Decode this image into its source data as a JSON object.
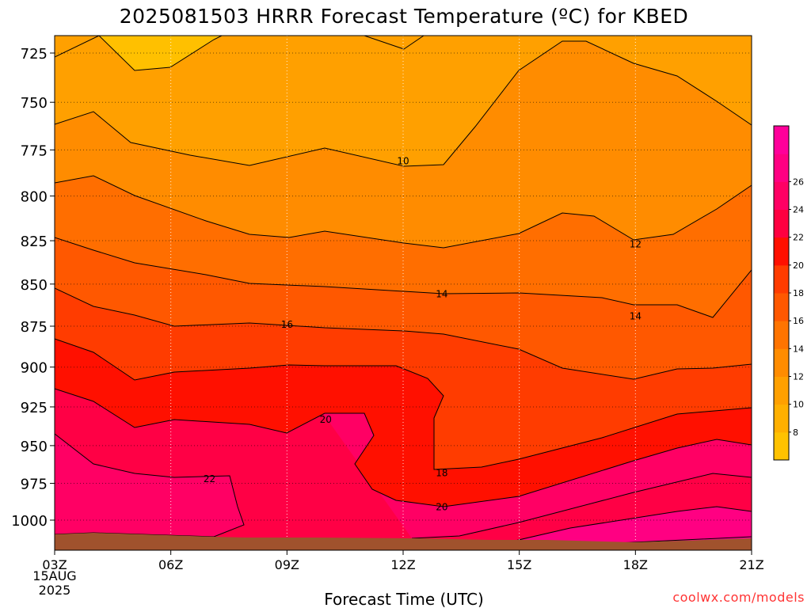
{
  "chart_data": {
    "type": "contour",
    "title": "2025081503 HRRR Forecast Temperature (ºC) for KBED",
    "xlabel": "Forecast Time (UTC)",
    "ylabel": "",
    "credit": "coolwx.com/models",
    "x_ticks": [
      "03Z",
      "06Z",
      "09Z",
      "12Z",
      "15Z",
      "18Z",
      "21Z"
    ],
    "x_date_line1": "15AUG",
    "x_date_line2": "2025",
    "x_hours": [
      3,
      21
    ],
    "y_ticks": [
      725,
      750,
      775,
      800,
      825,
      850,
      875,
      900,
      925,
      950,
      975,
      1000
    ],
    "y_range_hPa": [
      710,
      1020
    ],
    "y_scale": "log-pressure (inverted)",
    "grid": "dotted",
    "colorbar_levels": [
      8,
      10,
      12,
      14,
      16,
      18,
      20,
      22,
      24,
      26
    ],
    "colorbar_colors": [
      "#ffc200",
      "#ffb000",
      "#ffa000",
      "#ff8c00",
      "#ff7400",
      "#ff5800",
      "#ff3c00",
      "#ff1000",
      "#ff0040",
      "#ff0064",
      "#ff0082",
      "#ff009a"
    ],
    "contour_labels": [
      {
        "text": "10",
        "hour": 12.0,
        "hPa": 781
      },
      {
        "text": "12",
        "hour": 18.0,
        "hPa": 827
      },
      {
        "text": "14",
        "hour": 13.0,
        "hPa": 856
      },
      {
        "text": "14",
        "hour": 18.0,
        "hPa": 869
      },
      {
        "text": "16",
        "hour": 9.0,
        "hPa": 874
      },
      {
        "text": "18",
        "hour": 13.0,
        "hPa": 968
      },
      {
        "text": "20",
        "hour": 10.0,
        "hPa": 933
      },
      {
        "text": "20",
        "hour": 13.0,
        "hPa": 991
      },
      {
        "text": "22",
        "hour": 7.0,
        "hPa": 972
      }
    ],
    "surface_color": "#a0522d"
  }
}
